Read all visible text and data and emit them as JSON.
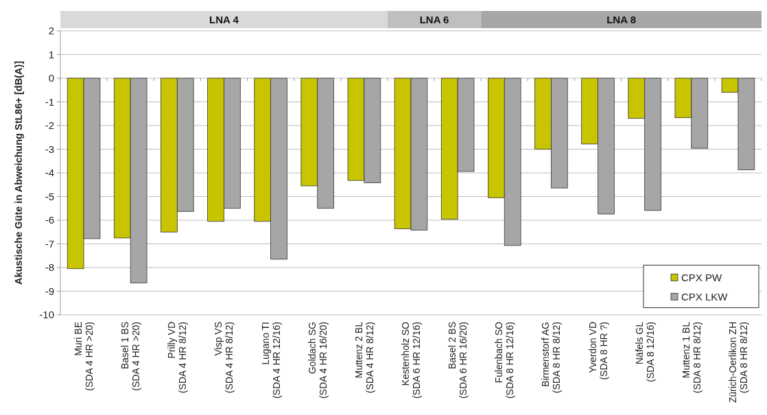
{
  "chart_data": {
    "type": "bar",
    "ylabel": "Akustische Güte in Abweichung StL86+ [dB(A)]",
    "categories": [
      "Muri BE\n(SDA 4 HR >20)",
      "Basel 1 BS\n(SDA 4 HR >20)",
      "Prilly VD\n(SDA 4 HR 8/12)",
      "Visp VS\n(SDA 4 HR 8/12)",
      "Lugano TI\n(SDA 4 HR 12/16)",
      "Goldach SG\n(SDA 4 HR 16/20)",
      "Muttenz 2 BL\n(SDA 4 HR 8/12)",
      "Kestenholz SO\n(SDA 6 HR 12/16)",
      "Basel 2 BS\n(SDA 6 HR 16/20)",
      "Fulenbach SO\n(SDA 8 HR 12/16)",
      "Birmenstorf AG\n(SDA 8 HR 8/12)",
      "Yverdon VD\n(SDA 8 HR ?)",
      "Näfels GL\n(SDA 8 12/16)",
      "Muttenz 1 BL\n(SDA 8 HR 8/12)",
      "Zürich-Oerlikon ZH\n(SDA 8 HR 8/12)"
    ],
    "series": [
      {
        "name": "CPX PW",
        "color": "#c8c400",
        "values": [
          -8.05,
          -6.75,
          -6.5,
          -6.05,
          -6.05,
          -4.55,
          -4.32,
          -6.36,
          -5.96,
          -5.05,
          -3.0,
          -2.78,
          -1.7,
          -1.67,
          -0.6
        ]
      },
      {
        "name": "CPX LKW",
        "color": "#a6a6a6",
        "values": [
          -6.78,
          -8.65,
          -5.63,
          -5.5,
          -7.65,
          -5.5,
          -4.42,
          -6.42,
          -3.94,
          -7.07,
          -4.64,
          -5.74,
          -5.59,
          -2.96,
          -3.87
        ]
      }
    ],
    "ylim": [
      -10,
      2
    ],
    "yticks": [
      -10,
      -9,
      -8,
      -7,
      -6,
      -5,
      -4,
      -3,
      -2,
      -1,
      0,
      1,
      2
    ],
    "grid": "y",
    "legend": "bottom right",
    "annotations": [
      "LNA 4",
      "LNA 6",
      "LNA 8"
    ]
  }
}
